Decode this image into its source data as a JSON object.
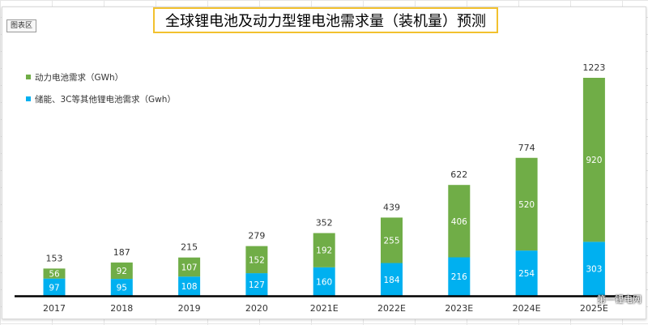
{
  "chart_area_label": "图表区",
  "watermark": "第一锂电网",
  "colors": {
    "power": "#70ad47",
    "storage": "#00b0f0",
    "title_border": "#f2c12e",
    "axis": "#000000"
  },
  "chart_data": {
    "type": "bar",
    "stacked": true,
    "title": "全球锂电池及动力型锂电池需求量（装机量）预测",
    "xlabel": "",
    "ylabel": "",
    "grid": false,
    "legend_position": "left",
    "categories": [
      "2017",
      "2018",
      "2019",
      "2020",
      "2021E",
      "2022E",
      "2023E",
      "2024E",
      "2025E"
    ],
    "series": [
      {
        "name": "储能、3C等其他锂电池需求（Gwh）",
        "values": [
          97,
          95,
          108,
          127,
          160,
          184,
          216,
          254,
          303
        ]
      },
      {
        "name": "动力电池需求（GWh）",
        "values": [
          56,
          92,
          107,
          152,
          192,
          255,
          406,
          520,
          920
        ]
      }
    ],
    "totals": [
      153,
      187,
      215,
      279,
      352,
      439,
      622,
      774,
      1223
    ]
  }
}
